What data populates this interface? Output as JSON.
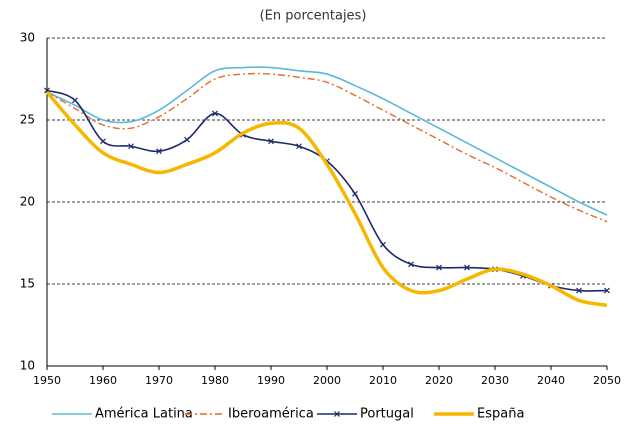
{
  "chart_data": {
    "type": "line",
    "subtitle": "(En porcentajes)",
    "x": [
      1950,
      1955,
      1960,
      1965,
      1970,
      1975,
      1980,
      1985,
      1990,
      1995,
      2000,
      2005,
      2010,
      2015,
      2020,
      2025,
      2030,
      2035,
      2040,
      2045,
      2050
    ],
    "xlim": [
      1950,
      2050
    ],
    "xticks": [
      1950,
      1960,
      1970,
      1980,
      1990,
      2000,
      2010,
      2020,
      2030,
      2040,
      2050
    ],
    "ylim": [
      10,
      30
    ],
    "yticks": [
      10,
      15,
      20,
      25,
      30
    ],
    "grid": true,
    "legend": "bottom",
    "series": [
      {
        "name": "América Latina",
        "color": "#5bb8d6",
        "style": "solid",
        "values": [
          26.7,
          25.9,
          25.0,
          24.9,
          25.6,
          26.8,
          28.0,
          28.2,
          28.2,
          28.0,
          27.8,
          27.1,
          26.3,
          25.4,
          24.5,
          23.6,
          22.7,
          21.8,
          20.9,
          20.0,
          19.2
        ]
      },
      {
        "name": "Iberoamérica",
        "color": "#e46c2a",
        "style": "dashdot",
        "values": [
          26.7,
          25.7,
          24.7,
          24.5,
          25.2,
          26.3,
          27.5,
          27.8,
          27.8,
          27.6,
          27.3,
          26.5,
          25.6,
          24.7,
          23.8,
          22.9,
          22.1,
          21.2,
          20.3,
          19.5,
          18.8
        ]
      },
      {
        "name": "Portugal",
        "color": "#1f2a6b",
        "style": "marker",
        "values": [
          26.8,
          26.2,
          23.7,
          23.4,
          23.1,
          23.8,
          25.4,
          24.1,
          23.7,
          23.4,
          22.5,
          20.5,
          17.4,
          16.2,
          16.0,
          16.0,
          15.9,
          15.5,
          14.9,
          14.6,
          14.6
        ]
      },
      {
        "name": "España",
        "color": "#f5b700",
        "style": "thick",
        "values": [
          26.7,
          24.7,
          23.0,
          22.3,
          21.8,
          22.3,
          23.0,
          24.2,
          24.8,
          24.5,
          22.3,
          19.3,
          16.0,
          14.6,
          14.6,
          15.3,
          15.9,
          15.6,
          14.9,
          14.0,
          13.7
        ]
      }
    ]
  }
}
